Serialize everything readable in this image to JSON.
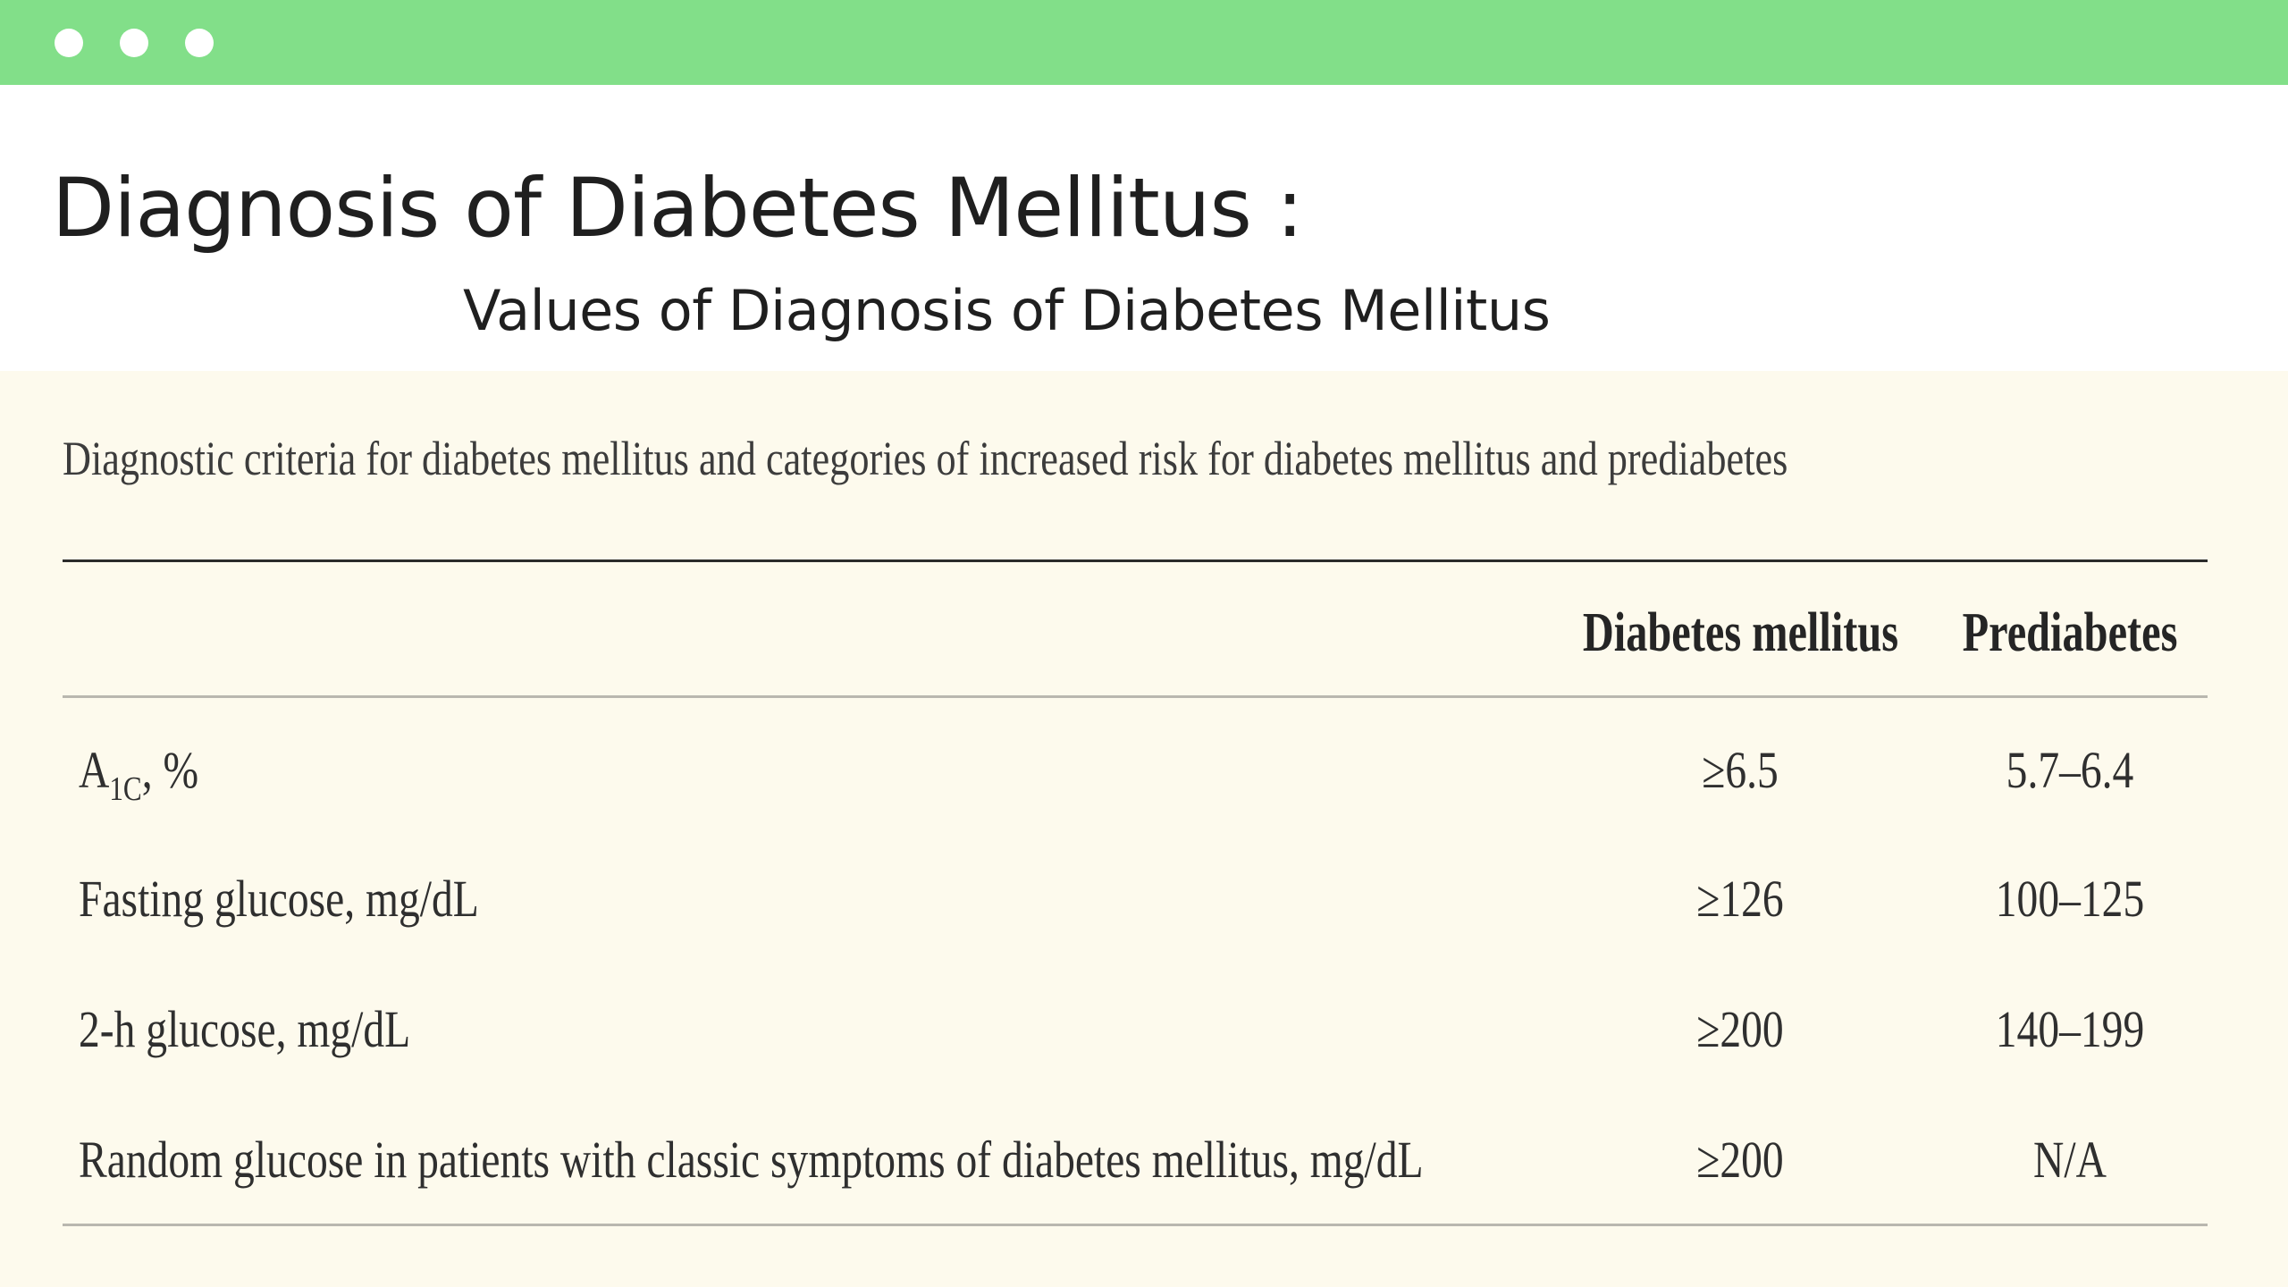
{
  "window": {
    "controls": [
      "dot",
      "dot",
      "dot"
    ],
    "accent_color": "#82df89"
  },
  "slide": {
    "title": "Diagnosis of Diabetes Mellitus :",
    "subtitle": "Values of Diagnosis of Diabetes Mellitus"
  },
  "table": {
    "caption": "Diagnostic criteria for diabetes mellitus and categories of increased risk for diabetes mellitus and prediabetes",
    "headers": [
      "",
      "Diabetes mellitus",
      "Prediabetes"
    ],
    "rows": [
      {
        "label_main": "A",
        "label_sub": "1C",
        "label_rest": ", %",
        "diabetes": "≥6.5",
        "prediabetes": "5.7–6.4"
      },
      {
        "label": "Fasting glucose, mg/dL",
        "diabetes": "≥126",
        "prediabetes": "100–125"
      },
      {
        "label": "2-h glucose, mg/dL",
        "diabetes": "≥200",
        "prediabetes": "140–199"
      },
      {
        "label": "Random glucose in patients with classic symptoms of diabetes mellitus, mg/dL",
        "diabetes": "≥200",
        "prediabetes": "N/A"
      }
    ]
  }
}
